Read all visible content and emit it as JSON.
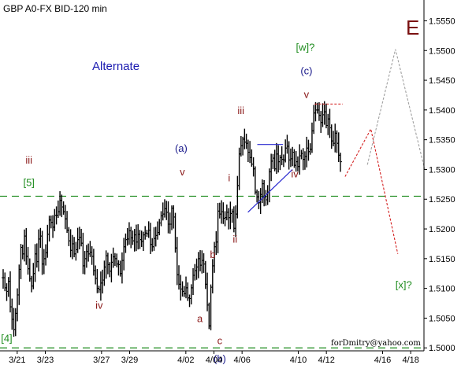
{
  "chart_data": {
    "type": "ohlc",
    "title": "GBP A0-FX BID-120 min",
    "corner_label": "E",
    "watermark": "forDmitry@yahoo.com",
    "subtitle_note": "Alternate",
    "ylim": [
      1.4995,
      1.5585
    ],
    "y_ticks": [
      "1.5000",
      "1.5050",
      "1.5100",
      "1.5150",
      "1.5200",
      "1.5250",
      "1.5300",
      "1.5350",
      "1.5400",
      "1.5450",
      "1.5500",
      "1.5550"
    ],
    "x_ticks": [
      "3/21",
      "3/23",
      "3/27",
      "3/29",
      "4/02",
      "4/04",
      "4/06",
      "4/10",
      "4/12",
      "4/16",
      "4/18"
    ],
    "closes": [
      1.5118,
      1.5101,
      1.5095,
      1.5112,
      1.5069,
      1.5048,
      1.5031,
      1.5058,
      1.5089,
      1.5132,
      1.5169,
      1.5158,
      1.5188,
      1.5154,
      1.5133,
      1.5116,
      1.5104,
      1.5125,
      1.5158,
      1.5145,
      1.5183,
      1.5188,
      1.5141,
      1.515,
      1.516,
      1.5191,
      1.5215,
      1.5211,
      1.5203,
      1.5223,
      1.5223,
      1.5229,
      1.5248,
      1.5237,
      1.5229,
      1.5217,
      1.5198,
      1.518,
      1.5164,
      1.5175,
      1.5158,
      1.5165,
      1.5182,
      1.5186,
      1.5176,
      1.5138,
      1.515,
      1.5162,
      1.5158,
      1.5161,
      1.5154,
      1.513,
      1.5117,
      1.51,
      1.5098,
      1.5109,
      1.5114,
      1.5136,
      1.5155,
      1.514,
      1.5129,
      1.5144,
      1.5153,
      1.515,
      1.5141,
      1.514,
      1.5125,
      1.5147,
      1.517,
      1.5182,
      1.5183,
      1.5197,
      1.5185,
      1.518,
      1.519,
      1.5178,
      1.5191,
      1.5182,
      1.5179,
      1.519,
      1.5193,
      1.5192,
      1.5198,
      1.5174,
      1.517,
      1.5184,
      1.5189,
      1.5194,
      1.521,
      1.5222,
      1.5225,
      1.5234,
      1.5228,
      1.5208,
      1.5208,
      1.5235,
      1.522,
      1.5168,
      1.5123,
      1.5107,
      1.5099,
      1.5095,
      1.5091,
      1.5101,
      1.5084,
      1.5083,
      1.5101,
      1.5122,
      1.513,
      1.5136,
      1.515,
      1.5139,
      1.5147,
      1.5141,
      1.5107,
      1.5072,
      1.5037,
      1.5102,
      1.5138,
      1.517,
      1.5178,
      1.523,
      1.5225,
      1.5229,
      1.5218,
      1.5219,
      1.5228,
      1.5219,
      1.5226,
      1.5229,
      1.5201,
      1.5225,
      1.5273,
      1.5326,
      1.534,
      1.5351,
      1.5346,
      1.5344,
      1.5329,
      1.532,
      1.5309,
      1.5301,
      1.5262,
      1.5254,
      1.5244,
      1.5258,
      1.5276,
      1.5254,
      1.5249,
      1.5262,
      1.5296,
      1.5314,
      1.5319,
      1.5301,
      1.5326,
      1.5313,
      1.532,
      1.5317,
      1.5316,
      1.5336,
      1.5339,
      1.5316,
      1.5318,
      1.5329,
      1.5307,
      1.5313,
      1.5305,
      1.5323,
      1.5327,
      1.5317,
      1.5322,
      1.5336,
      1.533,
      1.5334,
      1.5365,
      1.5395,
      1.54,
      1.54,
      1.5391,
      1.5379,
      1.5392,
      1.5397,
      1.5374,
      1.5385,
      1.537,
      1.5348,
      1.5344,
      1.5361,
      1.5344,
      1.5324,
      1.5313
    ],
    "first_bar_date": "2012-03-20",
    "last_bar_date": "2012-04-13",
    "axis_end_date": "2012-04-19",
    "horizontal_levels": [
      {
        "price": 1.5255,
        "color": "#1e8c1e",
        "style": "dashed"
      },
      {
        "price": 1.5,
        "color": "#1e8c1e",
        "style": "dashed"
      }
    ],
    "resistance_line": {
      "from": [
        "2012-04-11 04:00",
        1.541
      ],
      "to": [
        "2012-04-13 04:00",
        1.541
      ],
      "color": "#d42020",
      "style": "dotted"
    },
    "triangle_lines": [
      {
        "from": [
          "2012-04-07 02:00",
          1.5342
        ],
        "to": [
          "2012-04-08 22:00",
          1.5342
        ],
        "color": "#2a2ad0"
      },
      {
        "from": [
          "2012-04-06 10:00",
          1.5228
        ],
        "to": [
          "2012-04-09 14:00",
          1.53
        ],
        "color": "#2a2ad0"
      }
    ],
    "projections": [
      {
        "color": "#d42020",
        "style": "dotted",
        "points": [
          [
            "2012-04-13 08:00",
            1.5288
          ],
          [
            "2012-04-15 04:00",
            1.5368
          ],
          [
            "2012-04-17 02:00",
            1.5158
          ]
        ]
      },
      {
        "color": "#a0a0a0",
        "style": "dotted",
        "points": [
          [
            "2012-04-14 22:00",
            1.5308
          ],
          [
            "2012-04-16 22:00",
            1.5502
          ],
          [
            "2012-04-19 00:00",
            1.53
          ]
        ]
      }
    ],
    "annotations": [
      {
        "text": "iii",
        "at": [
          "2012-03-21 20:00",
          1.531
        ],
        "color": "#8b1a1a"
      },
      {
        "text": "[5]",
        "at": [
          "2012-03-21 20:00",
          1.5272
        ],
        "color": "#1e8c1e"
      },
      {
        "text": "iv",
        "at": [
          "2012-03-26 20:00",
          1.5066
        ],
        "color": "#8b1a1a"
      },
      {
        "text": "[4]",
        "at": [
          "2012-03-20 06:00",
          1.501
        ],
        "color": "#1e8c1e"
      },
      {
        "text": "(a)",
        "at": [
          "2012-04-01 16:00",
          1.533
        ],
        "color": "#1a1a8b"
      },
      {
        "text": "v",
        "at": [
          "2012-04-01 18:00",
          1.529
        ],
        "color": "#8b1a1a"
      },
      {
        "text": "a",
        "at": [
          "2012-04-03 00:00",
          1.5043
        ],
        "color": "#8b1a1a"
      },
      {
        "text": "b",
        "at": [
          "2012-04-03 22:00",
          1.5151
        ],
        "color": "#8b1a1a"
      },
      {
        "text": "c",
        "at": [
          "2012-04-04 10:00",
          1.5006
        ],
        "color": "#8b1a1a"
      },
      {
        "text": "(b)",
        "at": [
          "2012-04-04 10:00",
          1.4976
        ],
        "color": "#1a1a8b"
      },
      {
        "text": "i",
        "at": [
          "2012-04-05 02:00",
          1.528
        ],
        "color": "#8b1a1a"
      },
      {
        "text": "ii",
        "at": [
          "2012-04-05 12:00",
          1.5177
        ],
        "color": "#8b1a1a"
      },
      {
        "text": "iii",
        "at": [
          "2012-04-05 22:00",
          1.5393
        ],
        "color": "#8b1a1a"
      },
      {
        "text": "iv",
        "at": [
          "2012-04-09 18:00",
          1.5287
        ],
        "color": "#8b1a1a"
      },
      {
        "text": "[w]?",
        "at": [
          "2012-04-10 12:00",
          1.55
        ],
        "color": "#1e8c1e"
      },
      {
        "text": "(c)",
        "at": [
          "2012-04-10 14:00",
          1.546
        ],
        "color": "#1a1a8b"
      },
      {
        "text": "v",
        "at": [
          "2012-04-10 14:00",
          1.542
        ],
        "color": "#8b1a1a"
      },
      {
        "text": "[x]?",
        "at": [
          "2012-04-17 12:00",
          1.51
        ],
        "color": "#1e8c1e"
      }
    ]
  }
}
